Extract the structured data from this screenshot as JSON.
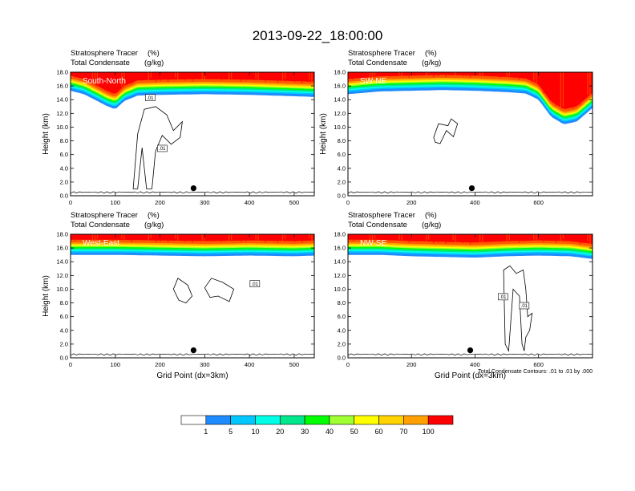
{
  "title": "2013-09-22_18:00:00",
  "colors": {
    "levels": [
      "#ffffff",
      "#1e8cff",
      "#00c8ff",
      "#00ffe6",
      "#00e68c",
      "#00ff00",
      "#a0ff32",
      "#ffff00",
      "#ffd200",
      "#ffa000",
      "#ff5a00",
      "#ff0000"
    ],
    "contour": "#000000",
    "panel_label": "#ffffff",
    "background": "#ffffff"
  },
  "colorbar": {
    "labels": [
      "1",
      "5",
      "10",
      "20",
      "30",
      "40",
      "50",
      "60",
      "70",
      "100"
    ]
  },
  "footnote": "Total Condensate Contours: .01 to .01 by .000",
  "marker": "filled-black-circle",
  "chart_data": [
    {
      "type": "heatmap",
      "panel": "South-North",
      "subtitle_left": [
        "Stratosphere Tracer",
        "Total Condensate"
      ],
      "subtitle_units": [
        "(%)",
        "(g/kg)"
      ],
      "ylabel": "Height (km)",
      "xlabel": "",
      "ylim": [
        0,
        18
      ],
      "xlim": [
        0,
        545
      ],
      "yticks": [
        "0.0",
        "2.0",
        "4.0",
        "6.0",
        "8.0",
        "10.0",
        "12.0",
        "14.0",
        "16.0",
        "18.0"
      ],
      "xticks": [
        {
          "v": 0,
          "l": "0"
        },
        {
          "v": 100,
          "l": "100"
        },
        {
          "v": 200,
          "l": "200"
        },
        {
          "v": 300,
          "l": "300"
        },
        {
          "v": 400,
          "l": "400"
        },
        {
          "v": 500,
          "l": "500"
        }
      ],
      "tracer_lower_boundary_km": [
        [
          0,
          15.3
        ],
        [
          30,
          14.8
        ],
        [
          60,
          13.8
        ],
        [
          80,
          13.1
        ],
        [
          100,
          12.6
        ],
        [
          120,
          13.8
        ],
        [
          150,
          14.6
        ],
        [
          200,
          14.7
        ],
        [
          300,
          14.8
        ],
        [
          400,
          14.7
        ],
        [
          500,
          14.5
        ],
        [
          545,
          14.4
        ]
      ],
      "marker_point": {
        "x": 275,
        "y": 1.1
      },
      "contour_labels": [
        {
          "x": 178,
          "y": 14.3,
          "text": ".01"
        },
        {
          "x": 205,
          "y": 6.9,
          "text": ".01"
        }
      ]
    },
    {
      "type": "heatmap",
      "panel": "SW-NE",
      "subtitle_left": [
        "Stratosphere Tracer",
        "Total Condensate"
      ],
      "subtitle_units": [
        "(%)",
        "(g/kg)"
      ],
      "ylabel": "Height (km)",
      "xlabel": "",
      "ylim": [
        0,
        18
      ],
      "xlim": [
        0,
        770
      ],
      "yticks": [
        "0.0",
        "2.0",
        "4.0",
        "6.0",
        "8.0",
        "10.0",
        "12.0",
        "14.0",
        "16.0",
        "18.0"
      ],
      "xticks": [
        {
          "v": 0,
          "l": "0"
        },
        {
          "v": 200,
          "l": "200"
        },
        {
          "v": 400,
          "l": "400"
        },
        {
          "v": 600,
          "l": "600"
        }
      ],
      "tracer_lower_boundary_km": [
        [
          0,
          14.8
        ],
        [
          100,
          15.2
        ],
        [
          200,
          15.3
        ],
        [
          300,
          15.4
        ],
        [
          400,
          15.3
        ],
        [
          500,
          15.1
        ],
        [
          560,
          14.9
        ],
        [
          600,
          14.0
        ],
        [
          640,
          11.5
        ],
        [
          680,
          10.4
        ],
        [
          720,
          10.8
        ],
        [
          750,
          12.0
        ],
        [
          770,
          12.8
        ]
      ],
      "marker_point": {
        "x": 390,
        "y": 1.1
      },
      "contour_labels": []
    },
    {
      "type": "heatmap",
      "panel": "West-East",
      "subtitle_left": [
        "Stratosphere Tracer",
        "Total Condensate"
      ],
      "subtitle_units": [
        "(%)",
        "(g/kg)"
      ],
      "ylabel": "Height (km)",
      "xlabel": "Grid Point (dx=3km)",
      "ylim": [
        0,
        18
      ],
      "xlim": [
        0,
        545
      ],
      "yticks": [
        "0.0",
        "2.0",
        "4.0",
        "6.0",
        "8.0",
        "10.0",
        "12.0",
        "14.0",
        "16.0",
        "18.0"
      ],
      "xticks": [
        {
          "v": 0,
          "l": "0"
        },
        {
          "v": 100,
          "l": "100"
        },
        {
          "v": 200,
          "l": "200"
        },
        {
          "v": 300,
          "l": "300"
        },
        {
          "v": 400,
          "l": "400"
        },
        {
          "v": 500,
          "l": "500"
        }
      ],
      "tracer_lower_boundary_km": [
        [
          0,
          15.0
        ],
        [
          100,
          15.0
        ],
        [
          200,
          14.9
        ],
        [
          300,
          14.8
        ],
        [
          400,
          14.9
        ],
        [
          500,
          14.8
        ],
        [
          545,
          14.9
        ]
      ],
      "marker_point": {
        "x": 275,
        "y": 1.1
      },
      "contour_labels": [
        {
          "x": 412,
          "y": 10.8,
          "text": ".01"
        }
      ]
    },
    {
      "type": "heatmap",
      "panel": "NW-SE",
      "subtitle_left": [
        "Stratosphere Tracer",
        "Total Condensate"
      ],
      "subtitle_units": [
        "(%)",
        "(g/kg)"
      ],
      "ylabel": "",
      "xlabel": "Grid Point (dx=3km)",
      "ylim": [
        0,
        18
      ],
      "xlim": [
        0,
        770
      ],
      "yticks": [
        "0.0",
        "2.0",
        "4.0",
        "6.0",
        "8.0",
        "10.0",
        "12.0",
        "14.0",
        "16.0",
        "18.0"
      ],
      "xticks": [
        {
          "v": 0,
          "l": "0"
        },
        {
          "v": 200,
          "l": "200"
        },
        {
          "v": 400,
          "l": "400"
        },
        {
          "v": 600,
          "l": "600"
        }
      ],
      "tracer_lower_boundary_km": [
        [
          0,
          15.0
        ],
        [
          100,
          15.0
        ],
        [
          200,
          14.8
        ],
        [
          300,
          14.7
        ],
        [
          400,
          14.6
        ],
        [
          500,
          14.8
        ],
        [
          600,
          14.9
        ],
        [
          700,
          14.8
        ],
        [
          770,
          14.4
        ]
      ],
      "marker_point": {
        "x": 385,
        "y": 1.1
      },
      "contour_labels": [
        {
          "x": 488,
          "y": 8.9,
          "text": ".01"
        },
        {
          "x": 555,
          "y": 7.6,
          "text": ".01"
        }
      ]
    }
  ]
}
